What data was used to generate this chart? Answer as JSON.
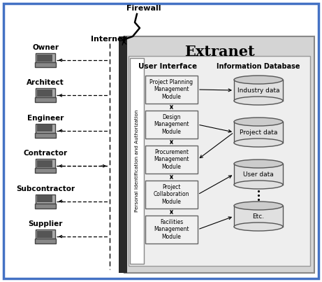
{
  "outer_border_color": "#4472c4",
  "background_color": "#ffffff",
  "extranet_label": "Extranet",
  "internet_label": "Internet",
  "firewall_label": "Firewall",
  "user_interface_label": "User Interface",
  "info_db_label": "Information Database",
  "personal_id_label": "Personal Identification and Authorization",
  "left_labels": [
    "Owner",
    "Architect",
    "Engineer",
    "Contractor",
    "Subcontractor",
    "Supplier"
  ],
  "modules": [
    "Project Planning\nManagement\nModule",
    "Design\nManagement\nModule",
    "Procurement\nManagement\nModule",
    "Project\nCollaboration\nModule",
    "Facilities\nManagement\nModule"
  ],
  "databases": [
    "Industry data",
    "Project data",
    "User data",
    "Etc."
  ],
  "firewall_color": "#2a2a2a",
  "module_box_facecolor": "#f0f0f0",
  "module_box_edgecolor": "#666666",
  "extranet_bg": "#d4d4d4",
  "inner_box_bg": "#eeeeee",
  "pid_box_bg": "#ffffff",
  "db_body_color": "#e0e0e0",
  "db_top_color": "#cccccc",
  "db_edge_color": "#555555"
}
